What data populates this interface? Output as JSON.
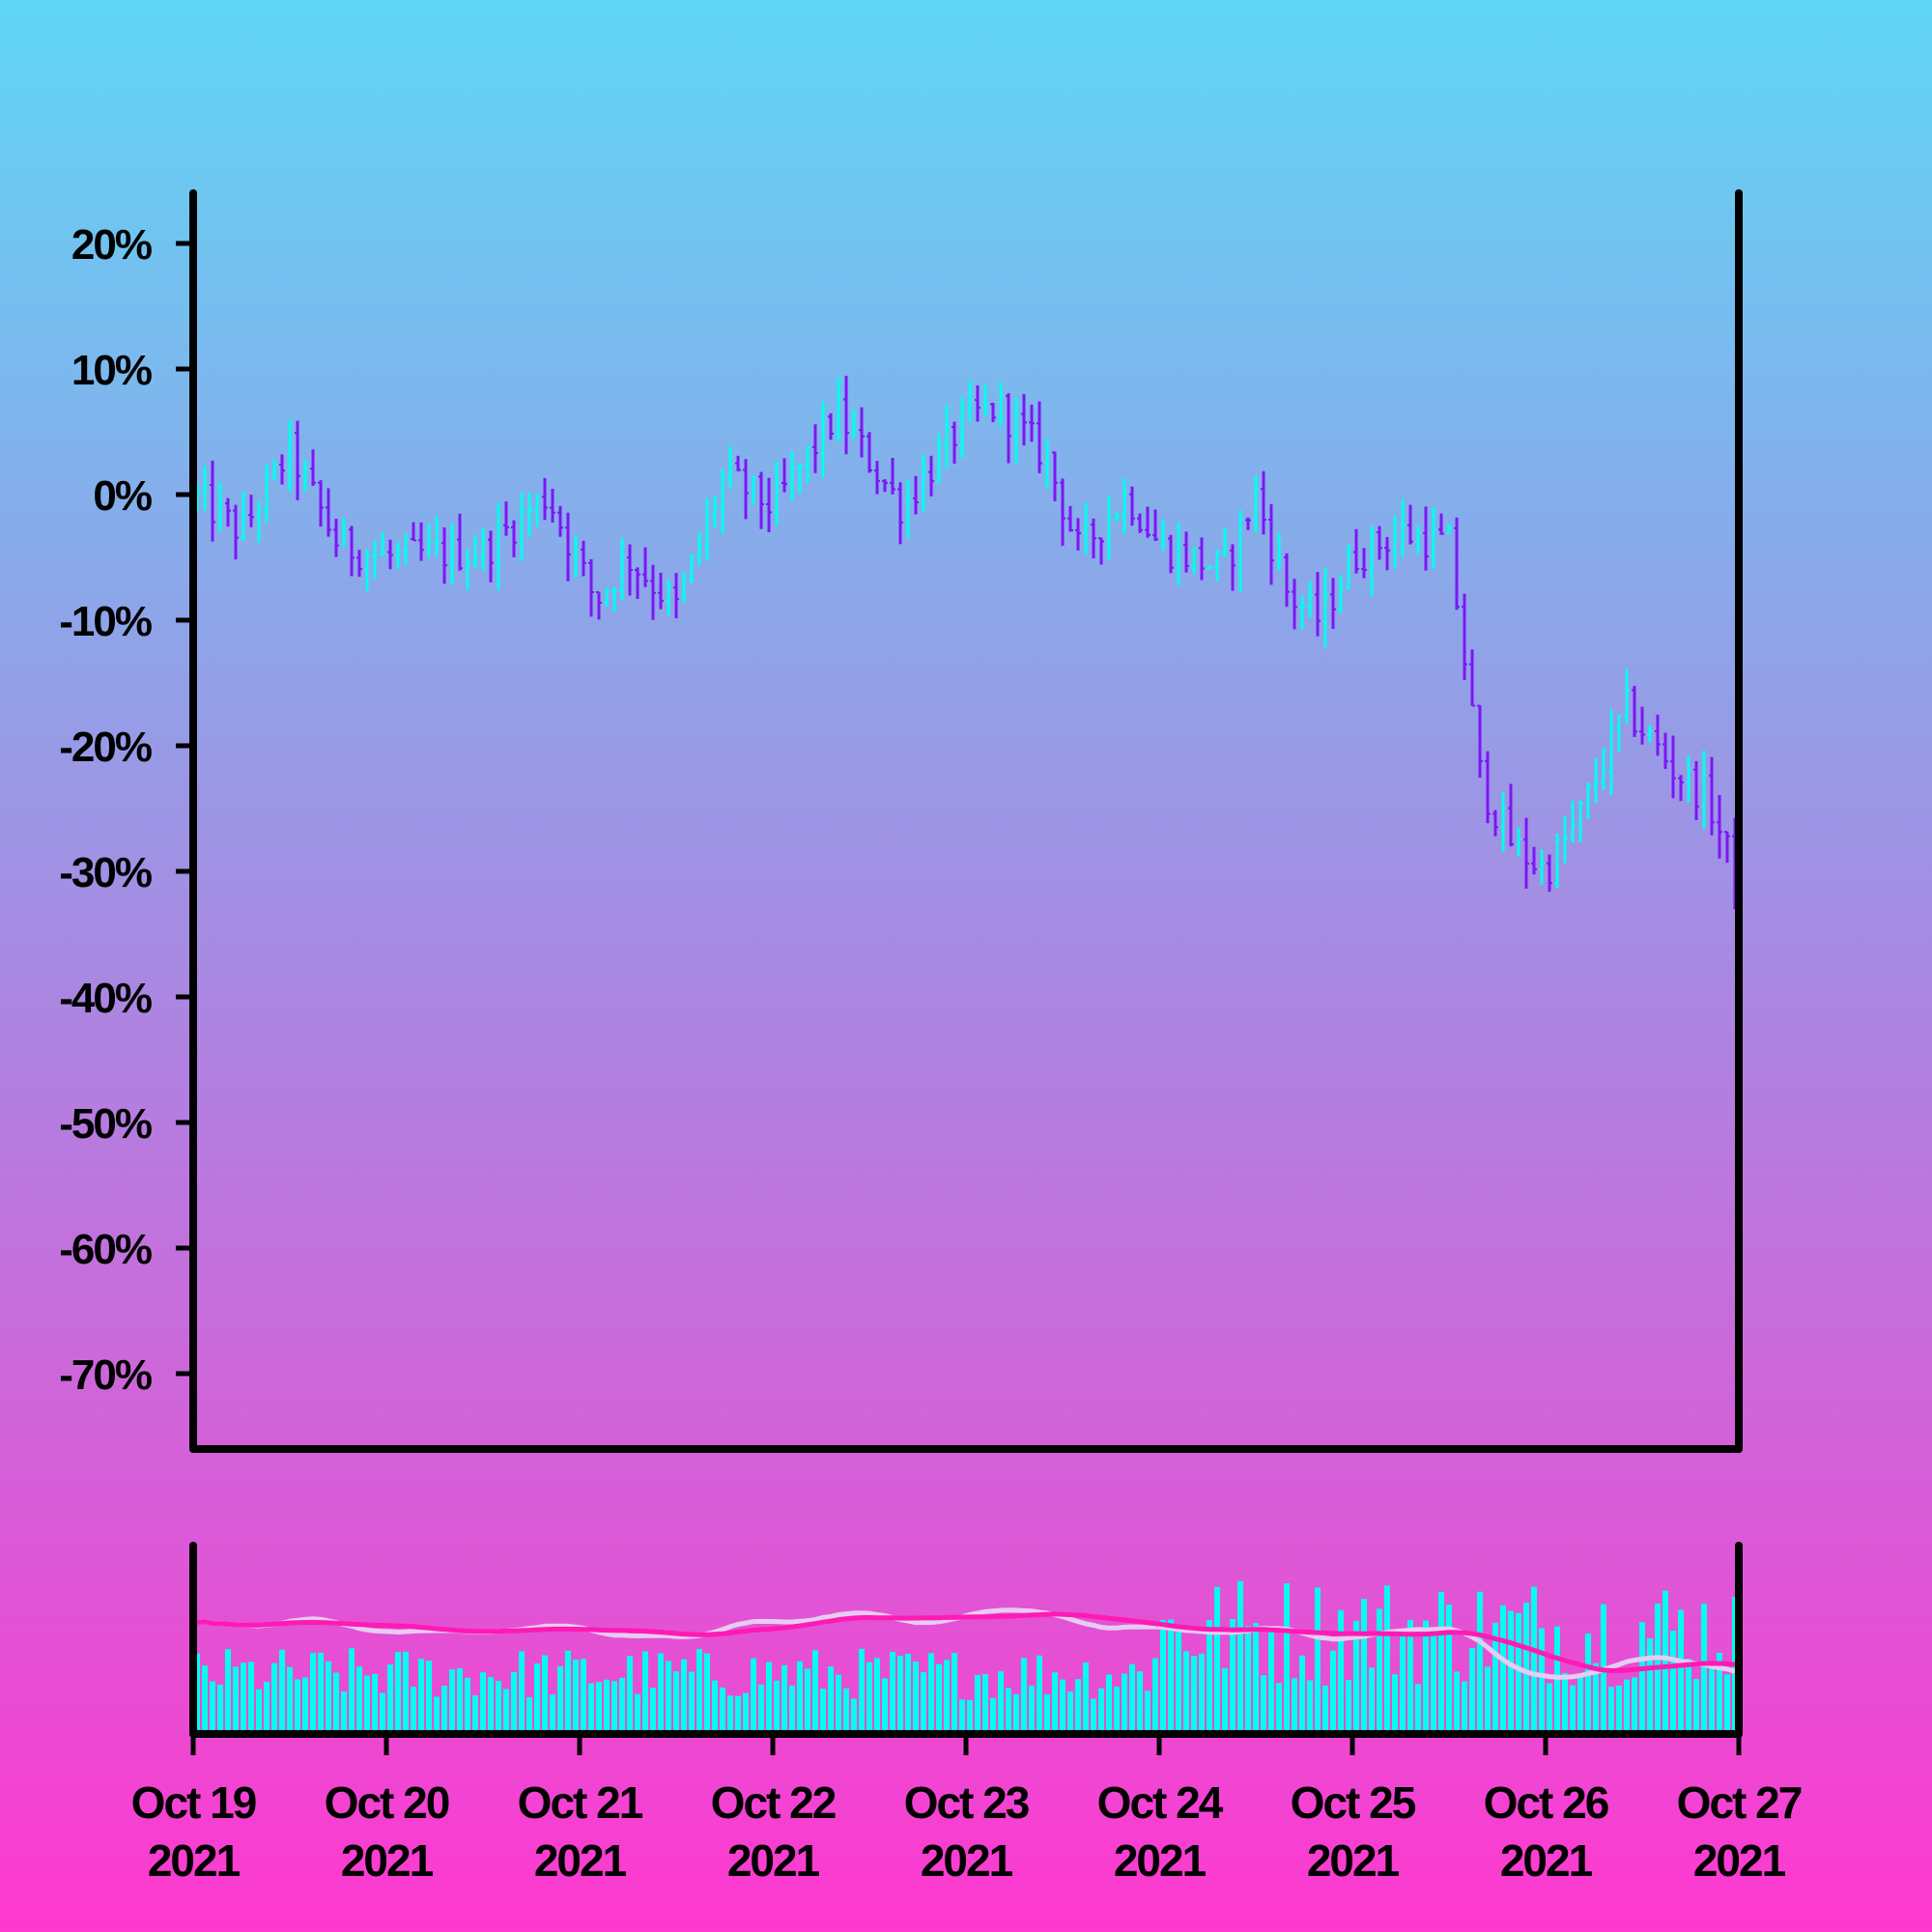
{
  "chart_data": [
    {
      "type": "ohlc",
      "title": "",
      "xlabel": "",
      "ylabel": "",
      "y_unit": "%",
      "ylim": [
        -76,
        24
      ],
      "yticks": [
        20,
        10,
        0,
        -10,
        -20,
        -30,
        -40,
        -50,
        -60,
        -70
      ],
      "ytick_labels": [
        "20%",
        "10%",
        "0%",
        "-10%",
        "-20%",
        "-30%",
        "-40%",
        "-50%",
        "-60%",
        "-70%"
      ],
      "xlim": [
        "2021-10-19",
        "2021-10-27"
      ],
      "grid": false,
      "legend": "none",
      "colors": {
        "up": "#00ffee",
        "down": "#7d16f5",
        "frame": "#000000"
      },
      "close_path": [
        [
          "2021-10-19T00:00",
          0
        ],
        [
          "2021-10-19T06:00",
          -3
        ],
        [
          "2021-10-19T12:00",
          3.5
        ],
        [
          "2021-10-19T18:00",
          -4
        ],
        [
          "2021-10-20T00:00",
          -5
        ],
        [
          "2021-10-20T12:00",
          -4.5
        ],
        [
          "2021-10-20T20:00",
          0
        ],
        [
          "2021-10-21T02:00",
          -8.5
        ],
        [
          "2021-10-21T06:00",
          -5
        ],
        [
          "2021-10-21T12:00",
          -9
        ],
        [
          "2021-10-21T18:00",
          1.5
        ],
        [
          "2021-10-22T00:00",
          -1
        ],
        [
          "2021-10-22T08:00",
          6.5
        ],
        [
          "2021-10-22T16:00",
          -1
        ],
        [
          "2021-10-23T00:00",
          6
        ],
        [
          "2021-10-23T04:00",
          7
        ],
        [
          "2021-10-23T10:00",
          3
        ],
        [
          "2021-10-23T14:00",
          -4.5
        ],
        [
          "2021-10-23T20:00",
          0
        ],
        [
          "2021-10-24T00:00",
          -4
        ],
        [
          "2021-10-24T08:00",
          -6
        ],
        [
          "2021-10-24T12:00",
          0
        ],
        [
          "2021-10-24T16:00",
          -8
        ],
        [
          "2021-10-24T20:00",
          -10
        ],
        [
          "2021-10-25T00:00",
          -5
        ],
        [
          "2021-10-25T06:00",
          -3
        ],
        [
          "2021-10-25T12:00",
          -4
        ],
        [
          "2021-10-25T16:00",
          -23
        ],
        [
          "2021-10-25T20:00",
          -28
        ],
        [
          "2021-10-26T00:00",
          -30
        ],
        [
          "2021-10-26T04:00",
          -26
        ],
        [
          "2021-10-26T10:00",
          -17
        ],
        [
          "2021-10-26T16:00",
          -22
        ],
        [
          "2021-10-26T20:00",
          -24
        ],
        [
          "2021-10-27T00:00",
          -31
        ],
        [
          "2021-10-27T04:00",
          -38
        ]
      ],
      "close_path_note": "Closing level sampled at regular intervals along the axis domain"
    },
    {
      "type": "bar",
      "title": "",
      "xlabel": "",
      "ylabel": "",
      "legend": "none",
      "colors": {
        "bars": "#00ffee",
        "line_fast": "#e6ccf2",
        "line_slow": "#ff1ab4",
        "frame": "#000000"
      },
      "xtick_labels": [
        [
          "Oct 19",
          "2021"
        ],
        [
          "Oct 20",
          "2021"
        ],
        [
          "Oct 21",
          "2021"
        ],
        [
          "Oct 22",
          "2021"
        ],
        [
          "Oct 23",
          "2021"
        ],
        [
          "Oct 24",
          "2021"
        ],
        [
          "Oct 25",
          "2021"
        ],
        [
          "Oct 26",
          "2021"
        ],
        [
          "Oct 27",
          "2021"
        ]
      ]
    }
  ]
}
